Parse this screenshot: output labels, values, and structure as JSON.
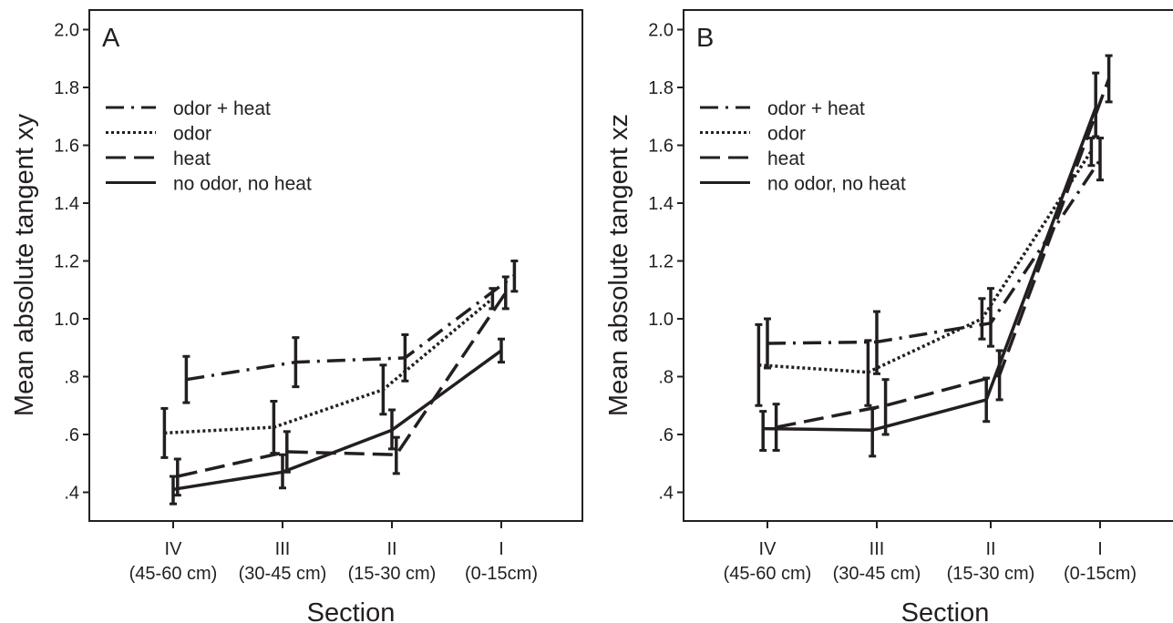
{
  "chart_data": [
    {
      "type": "line",
      "panel_label": "A",
      "xlabel": "Section",
      "ylabel": "Mean absolute tangent xy",
      "categories": [
        "IV",
        "III",
        "II",
        "I"
      ],
      "category_sublabels": [
        "(45-60 cm)",
        "(30-45 cm)",
        "(15-30 cm)",
        "(0-15cm)"
      ],
      "ylim": [
        0.31,
        2.1
      ],
      "yticks": [
        0.4,
        0.6,
        0.8,
        1.0,
        1.2,
        1.4,
        1.6,
        1.8,
        2.0
      ],
      "ytick_labels": [
        ".4",
        ".6",
        ".8",
        "1.0",
        "1.2",
        "1.4",
        "1.6",
        "1.8",
        "2.0"
      ],
      "grid": false,
      "legend_position": "top-left",
      "series": [
        {
          "name": "odor + heat",
          "dash": "dashdot",
          "offset": 0.12,
          "values": [
            0.79,
            0.85,
            0.865,
            1.15
          ],
          "errors": [
            [
              0.71,
              0.87
            ],
            [
              0.765,
              0.935
            ],
            [
              0.785,
              0.945
            ],
            [
              1.095,
              1.2
            ]
          ]
        },
        {
          "name": "odor",
          "dash": "dotted",
          "offset": -0.08,
          "values": [
            0.605,
            0.625,
            0.755,
            1.07
          ],
          "errors": [
            [
              0.52,
              0.69
            ],
            [
              0.535,
              0.715
            ],
            [
              0.67,
              0.84
            ],
            [
              1.035,
              1.105
            ]
          ]
        },
        {
          "name": "heat",
          "dash": "dashed",
          "offset": 0.04,
          "values": [
            0.455,
            0.54,
            0.53,
            1.09
          ],
          "errors": [
            [
              0.39,
              0.515
            ],
            [
              0.47,
              0.61
            ],
            [
              0.465,
              0.59
            ],
            [
              1.035,
              1.145
            ]
          ]
        },
        {
          "name": "no odor, no heat",
          "dash": "solid",
          "offset": 0.0,
          "values": [
            0.41,
            0.47,
            0.615,
            0.89
          ],
          "errors": [
            [
              0.36,
              0.455
            ],
            [
              0.415,
              0.53
            ],
            [
              0.55,
              0.685
            ],
            [
              0.85,
              0.93
            ]
          ]
        }
      ]
    },
    {
      "type": "line",
      "panel_label": "B",
      "xlabel": "Section",
      "ylabel": "Mean absolute tangent xz",
      "categories": [
        "IV",
        "III",
        "II",
        "I"
      ],
      "category_sublabels": [
        "(45-60 cm)",
        "(30-45 cm)",
        "(15-30 cm)",
        "(0-15cm)"
      ],
      "ylim": [
        0.31,
        2.1
      ],
      "yticks": [
        0.4,
        0.6,
        0.8,
        1.0,
        1.2,
        1.4,
        1.6,
        1.8,
        2.0
      ],
      "ytick_labels": [
        ".4",
        ".6",
        ".8",
        "1.0",
        "1.2",
        "1.4",
        "1.6",
        "1.8",
        "2.0"
      ],
      "grid": false,
      "legend_position": "top-left",
      "series": [
        {
          "name": "odor + heat",
          "dash": "dashdot",
          "offset": 0.0,
          "values": [
            0.915,
            0.92,
            0.985,
            1.55
          ],
          "errors": [
            [
              0.83,
              1.0
            ],
            [
              0.81,
              1.025
            ],
            [
              0.905,
              1.105
            ],
            [
              1.48,
              1.625
            ]
          ]
        },
        {
          "name": "odor",
          "dash": "dotted",
          "offset": -0.08,
          "values": [
            0.84,
            0.815,
            1.0,
            1.58
          ],
          "errors": [
            [
              0.7,
              0.98
            ],
            [
              0.7,
              0.925
            ],
            [
              0.93,
              1.07
            ],
            [
              1.53,
              1.625
            ]
          ]
        },
        {
          "name": "heat",
          "dash": "dashed",
          "offset": 0.08,
          "values": [
            0.625,
            0.7,
            0.805,
            1.83
          ],
          "errors": [
            [
              0.545,
              0.705
            ],
            [
              0.6,
              0.79
            ],
            [
              0.72,
              0.89
            ],
            [
              1.75,
              1.91
            ]
          ]
        },
        {
          "name": "no odor, no heat",
          "dash": "solid",
          "offset": -0.04,
          "values": [
            0.62,
            0.615,
            0.72,
            1.73
          ],
          "errors": [
            [
              0.545,
              0.68
            ],
            [
              0.525,
              0.69
            ],
            [
              0.645,
              0.795
            ],
            [
              1.63,
              1.85
            ]
          ]
        }
      ]
    }
  ]
}
